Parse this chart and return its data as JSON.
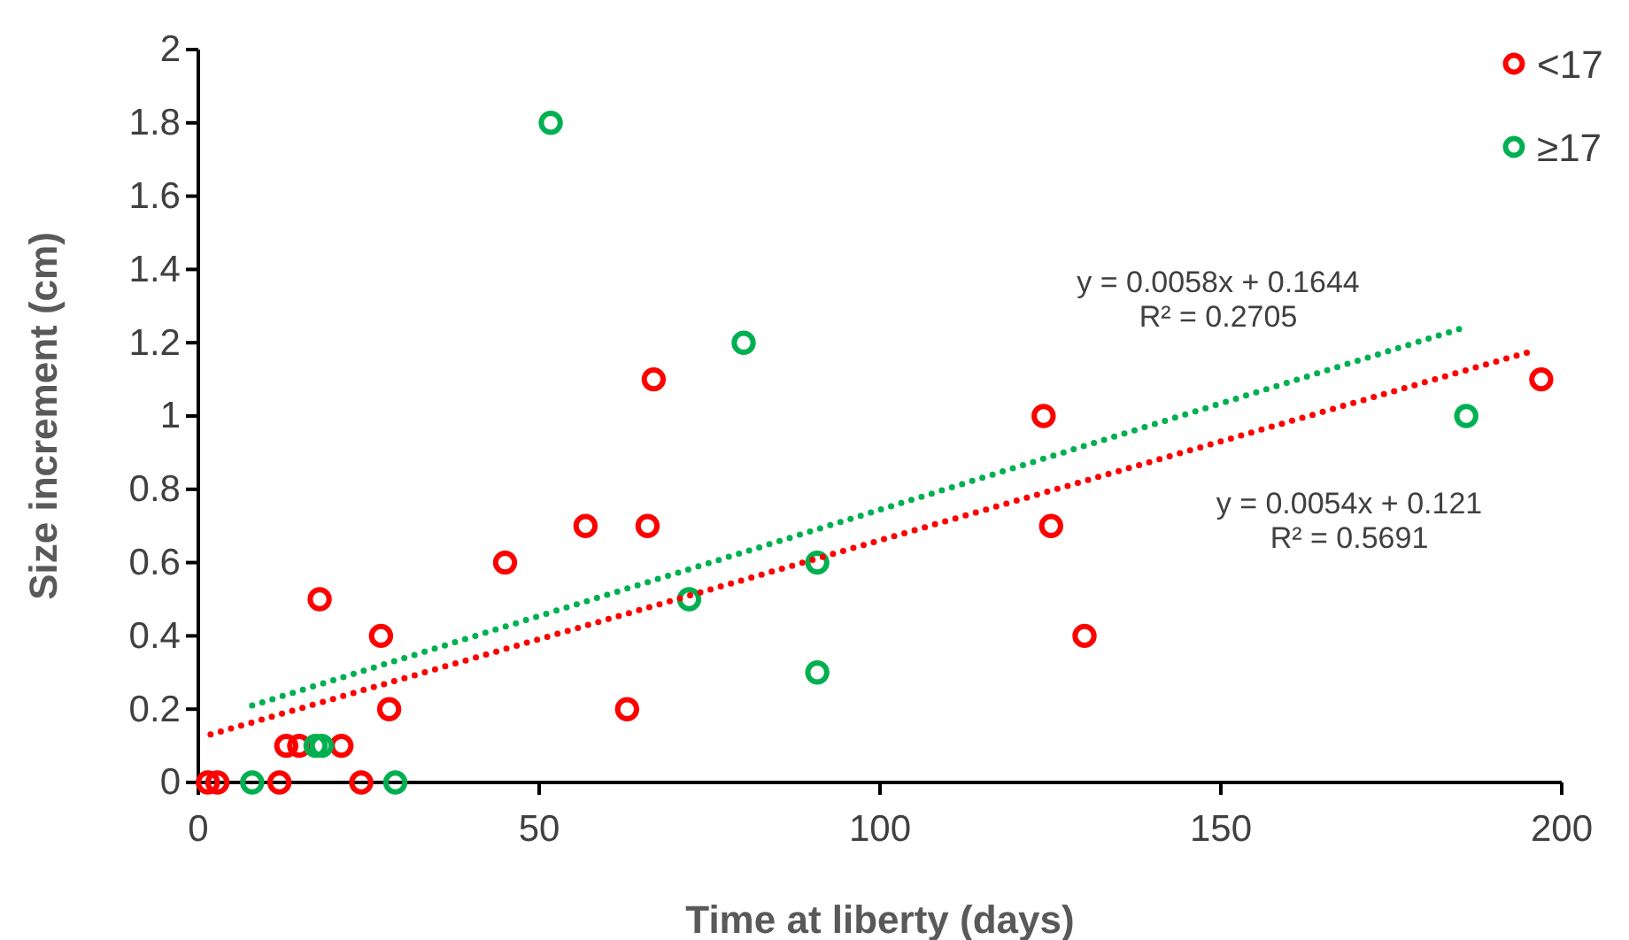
{
  "chart_data": {
    "type": "scatter",
    "xlabel": "Time at liberty (days)",
    "ylabel": "Size increment (cm)",
    "xlim": [
      0,
      200
    ],
    "xticks": [
      0,
      50,
      100,
      150,
      200
    ],
    "ylim": [
      0,
      2
    ],
    "yticks": [
      0,
      {
        "value": 0.2,
        "label": "0.2"
      },
      {
        "value": 0.4,
        "label": "0.4"
      },
      {
        "value": 0.6,
        "label": "0.6"
      },
      {
        "value": 0.8,
        "label": "0.8"
      },
      1,
      {
        "value": 1.2,
        "label": "1.2"
      },
      {
        "value": 1.4,
        "label": "1.4"
      },
      {
        "value": 1.6,
        "label": "1.6"
      },
      {
        "value": 1.8,
        "label": "1.8"
      },
      2
    ],
    "grid": false,
    "legend": "top right",
    "marker": "circle",
    "series": [
      {
        "name": "<17",
        "color": "#ff0000",
        "x": [
          1.4,
          2.8,
          11.9,
          12.9,
          14.8,
          17.8,
          21,
          23.9,
          26.8,
          28,
          45,
          56.8,
          62.9,
          65.9,
          66.8,
          124,
          125.1,
          130,
          197
        ],
        "values": [
          0,
          0,
          0,
          0.1,
          0.1,
          0.5,
          0.1,
          0,
          0.4,
          0.2,
          0.6,
          0.7,
          0.2,
          0.7,
          1.1,
          1.0,
          0.7,
          0.4,
          1.1
        ]
      },
      {
        "name": "≥17",
        "color": "#00b050",
        "x": [
          7.9,
          17.2,
          18.1,
          28.9,
          51.7,
          72,
          80,
          90.8,
          90.8,
          186
        ],
        "values": [
          0,
          0.1,
          0.1,
          0,
          1.8,
          0.5,
          1.2,
          0.6,
          0.3,
          1.0
        ]
      },
      {
        "type": "line",
        "color": "#ff0000",
        "line_style": "dotted",
        "marker": "none",
        "x": [
          1.8,
          196
        ],
        "values": [
          0.131,
          1.179
        ]
      },
      {
        "type": "line",
        "color": "#00b050",
        "line_style": "dotted",
        "marker": "none",
        "x": [
          7.9,
          185.6
        ],
        "values": [
          0.21,
          1.241
        ]
      }
    ],
    "annotations": [
      "y = 0.0058x + 0.1644\nR² = 0.2705",
      "y = 0.0054x + 0.121\nR² = 0.5691"
    ]
  }
}
